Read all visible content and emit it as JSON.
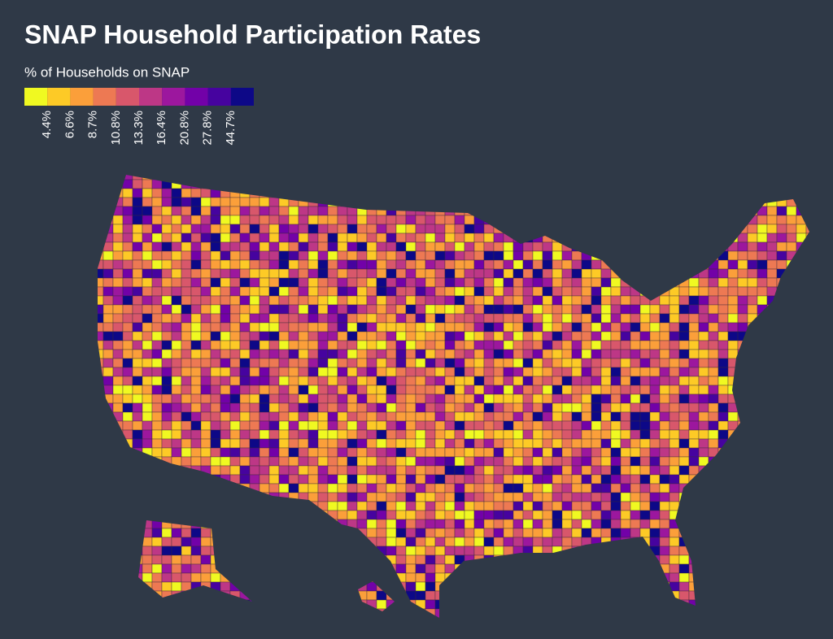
{
  "title": "SNAP Household Participation Rates",
  "legend": {
    "title": "% of Households on SNAP",
    "colors": [
      "#f0f921",
      "#fdca26",
      "#fb9f3a",
      "#ed7953",
      "#d8576b",
      "#bd3786",
      "#9c179e",
      "#7201a8",
      "#46039f",
      "#0d0887"
    ],
    "labels": [
      "4.4%",
      "6.6%",
      "8.7%",
      "10.8%",
      "13.3%",
      "16.4%",
      "20.8%",
      "27.8%",
      "44.7%"
    ]
  }
}
